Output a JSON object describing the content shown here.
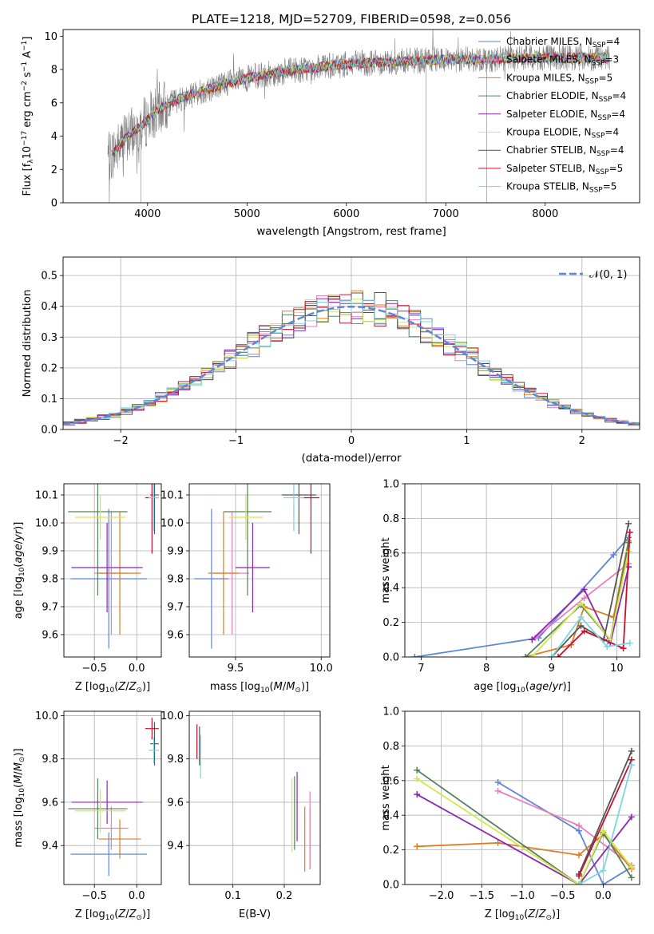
{
  "title": "PLATE=1218, MJD=52709, FIBERID=0598, z=0.056",
  "colors": {
    "Chabrier MILES": "#5f86d6",
    "Salpeter MILES": "#e87fb8",
    "Kroupa MILES": "#e07a24",
    "Chabrier ELODIE": "#55805a",
    "Salpeter ELODIE": "#8c25b2",
    "Kroupa ELODIE": "#cfe94c",
    "Chabrier STELIB": "#555555",
    "Salpeter STELIB": "#c8102e",
    "Kroupa STELIB": "#7ad7e0",
    "data": "#808080",
    "normal": "#5f86d6"
  },
  "chart_data": [
    {
      "id": "spectrum",
      "type": "line",
      "xlabel": "wavelength [Angstrom, rest frame]",
      "ylabel": "Flux [f_λ 10^-17 erg cm^-2 s^-1 A^-1]",
      "xlim": [
        3150,
        8950
      ],
      "ylim": [
        0,
        10.4
      ],
      "xticks": [
        4000,
        5000,
        6000,
        7000,
        8000
      ],
      "yticks": [
        0,
        2,
        4,
        6,
        8,
        10
      ],
      "grid": false,
      "legend_position": "right",
      "legend": [
        {
          "base": "Chabrier MILES, N",
          "sub": "SSP",
          "tail": "=4"
        },
        {
          "base": "Salpeter MILES, N",
          "sub": "SSP",
          "tail": "=3"
        },
        {
          "base": "Kroupa MILES, N",
          "sub": "SSP",
          "tail": "=5"
        },
        {
          "base": "Chabrier ELODIE, N",
          "sub": "SSP",
          "tail": "=4"
        },
        {
          "base": "Salpeter ELODIE, N",
          "sub": "SSP",
          "tail": "=4"
        },
        {
          "base": "Kroupa ELODIE, N",
          "sub": "SSP",
          "tail": "=4"
        },
        {
          "base": "Chabrier STELIB, N",
          "sub": "SSP",
          "tail": "=4"
        },
        {
          "base": "Salpeter STELIB, N",
          "sub": "SSP",
          "tail": "=5"
        },
        {
          "base": "Kroupa STELIB, N",
          "sub": "SSP",
          "tail": "=5"
        }
      ],
      "data_range": [
        3600,
        8650
      ],
      "continuum": {
        "x": [
          3600,
          3700,
          3800,
          3950,
          4100,
          4300,
          4500,
          4800,
          5100,
          5400,
          5800,
          6200,
          6600,
          7000,
          7400,
          7800,
          8200,
          8650
        ],
        "y": [
          2.6,
          3.3,
          4.0,
          4.7,
          5.6,
          6.2,
          6.6,
          7.2,
          7.6,
          7.9,
          8.2,
          8.4,
          8.5,
          8.6,
          8.6,
          8.7,
          8.7,
          8.7
        ]
      }
    },
    {
      "id": "residuals",
      "type": "step",
      "xlabel": "(data-model)/error",
      "ylabel": "Normed distribution",
      "xlim": [
        -2.5,
        2.5
      ],
      "ylim": [
        0,
        0.56
      ],
      "xticks": [
        -2,
        -1,
        0,
        1,
        2
      ],
      "yticks": [
        0.0,
        0.1,
        0.2,
        0.3,
        0.4,
        0.5
      ],
      "grid": true,
      "legend_position": "top-right",
      "legend": [
        "𝒩(0, 1)"
      ],
      "bin_width": 0.1
    },
    {
      "id": "age_vs_Z",
      "type": "errorbar",
      "xlabel": "Z [log10(Z/Z⊙)]",
      "ylabel": "age [log10(age/yr)]",
      "xlim": [
        -0.86,
        0.29
      ],
      "ylim": [
        9.52,
        10.14
      ],
      "xticks": [
        -0.5,
        0.0
      ],
      "yticks": [
        9.6,
        9.7,
        9.8,
        9.9,
        10.0,
        10.1
      ],
      "grid": true,
      "points": [
        {
          "s": "Chabrier MILES",
          "x": -0.33,
          "xe": 0.45,
          "y": 9.8,
          "ye": 0.25
        },
        {
          "s": "Salpeter MILES",
          "x": -0.3,
          "xe": 0.2,
          "y": 9.82,
          "ye": 0.22
        },
        {
          "s": "Kroupa MILES",
          "x": -0.2,
          "xe": 0.25,
          "y": 9.82,
          "ye": 0.22
        },
        {
          "s": "Chabrier ELODIE",
          "x": -0.46,
          "xe": 0.35,
          "y": 10.04,
          "ye": 0.3
        },
        {
          "s": "Salpeter ELODIE",
          "x": -0.35,
          "xe": 0.42,
          "y": 9.84,
          "ye": 0.16
        },
        {
          "s": "Kroupa ELODIE",
          "x": -0.43,
          "xe": 0.3,
          "y": 10.02,
          "ye": 0.08
        },
        {
          "s": "Chabrier STELIB",
          "x": 0.21,
          "xe": 0.05,
          "y": 10.1,
          "ye": 0.14
        },
        {
          "s": "Salpeter STELIB",
          "x": 0.18,
          "xe": 0.08,
          "y": 10.09,
          "ye": 0.2
        },
        {
          "s": "Kroupa STELIB",
          "x": 0.2,
          "xe": 0.06,
          "y": 10.09,
          "ye": 0.12
        }
      ]
    },
    {
      "id": "age_vs_mass",
      "type": "errorbar",
      "xlabel": "mass [log10(M/M⊙)]",
      "ylabel": "",
      "xlim": [
        9.23,
        10.05
      ],
      "ylim": [
        9.52,
        10.14
      ],
      "xticks": [
        9.5,
        10.0
      ],
      "yticks": [
        9.6,
        9.7,
        9.8,
        9.9,
        10.0,
        10.1
      ],
      "grid": true,
      "points": [
        {
          "s": "Chabrier MILES",
          "x": 9.36,
          "xe": 0.1,
          "y": 9.8,
          "ye": 0.25
        },
        {
          "s": "Salpeter MILES",
          "x": 9.48,
          "xe": 0.1,
          "y": 9.82,
          "ye": 0.22
        },
        {
          "s": "Kroupa MILES",
          "x": 9.43,
          "xe": 0.09,
          "y": 9.82,
          "ye": 0.22
        },
        {
          "s": "Chabrier ELODIE",
          "x": 9.57,
          "xe": 0.14,
          "y": 10.04,
          "ye": 0.3
        },
        {
          "s": "Salpeter ELODIE",
          "x": 9.6,
          "xe": 0.1,
          "y": 9.84,
          "ye": 0.16
        },
        {
          "s": "Kroupa ELODIE",
          "x": 9.56,
          "xe": 0.1,
          "y": 10.02,
          "ye": 0.08
        },
        {
          "s": "Chabrier STELIB",
          "x": 9.87,
          "xe": 0.1,
          "y": 10.1,
          "ye": 0.14
        },
        {
          "s": "Salpeter STELIB",
          "x": 9.94,
          "xe": 0.05,
          "y": 10.09,
          "ye": 0.2
        },
        {
          "s": "Kroupa STELIB",
          "x": 9.84,
          "xe": 0.06,
          "y": 10.09,
          "ye": 0.12
        }
      ]
    },
    {
      "id": "weight_vs_age",
      "type": "line",
      "xlabel": "age [log10(age/yr)]",
      "ylabel": "mass weight",
      "xlim": [
        6.75,
        10.35
      ],
      "ylim": [
        0,
        1.0
      ],
      "xticks": [
        7,
        8,
        9,
        10
      ],
      "yticks": [
        0.0,
        0.2,
        0.4,
        0.6,
        0.8,
        1.0
      ],
      "grid": true,
      "series": [
        {
          "name": "Chabrier MILES",
          "x": [
            6.9,
            8.8,
            9.95,
            10.18
          ],
          "y": [
            0.0,
            0.11,
            0.59,
            0.69
          ]
        },
        {
          "name": "Salpeter MILES",
          "x": [
            8.75,
            9.5,
            10.18
          ],
          "y": [
            0.11,
            0.34,
            0.54
          ]
        },
        {
          "name": "Kroupa MILES",
          "x": [
            8.6,
            9.3,
            9.5,
            9.95,
            10.18
          ],
          "y": [
            0.0,
            0.07,
            0.29,
            0.23,
            0.67
          ]
        },
        {
          "name": "Chabrier ELODIE",
          "x": [
            8.6,
            9.45,
            9.9,
            10.18
          ],
          "y": [
            0.0,
            0.3,
            0.1,
            0.66
          ]
        },
        {
          "name": "Salpeter ELODIE",
          "x": [
            8.7,
            9.5,
            9.9,
            10.18
          ],
          "y": [
            0.1,
            0.39,
            0.08,
            0.52
          ]
        },
        {
          "name": "Kroupa ELODIE",
          "x": [
            8.7,
            9.45,
            9.9,
            10.18
          ],
          "y": [
            0.0,
            0.31,
            0.1,
            0.61
          ]
        },
        {
          "name": "Chabrier STELIB",
          "x": [
            9.0,
            9.45,
            9.8,
            10.18
          ],
          "y": [
            0.0,
            0.18,
            0.1,
            0.77
          ]
        },
        {
          "name": "Salpeter STELIB",
          "x": [
            9.1,
            9.5,
            10.1,
            10.2
          ],
          "y": [
            0.0,
            0.15,
            0.05,
            0.72
          ]
        },
        {
          "name": "Kroupa STELIB",
          "x": [
            9.0,
            9.45,
            9.85,
            10.2
          ],
          "y": [
            0.0,
            0.23,
            0.06,
            0.08
          ]
        }
      ]
    },
    {
      "id": "mass_vs_Z",
      "type": "errorbar",
      "xlabel": "Z [log10(Z/Z⊙)]",
      "ylabel": "mass [log10(M/M⊙)]",
      "xlim": [
        -0.86,
        0.29
      ],
      "ylim": [
        9.22,
        10.02
      ],
      "xticks": [
        -0.5,
        0.0
      ],
      "yticks": [
        9.4,
        9.6,
        9.8,
        10.0
      ],
      "grid": true,
      "points": [
        {
          "s": "Chabrier MILES",
          "x": -0.33,
          "xe": 0.45,
          "y": 9.36,
          "ye": 0.1
        },
        {
          "s": "Salpeter MILES",
          "x": -0.3,
          "xe": 0.2,
          "y": 9.48,
          "ye": 0.1
        },
        {
          "s": "Kroupa MILES",
          "x": -0.2,
          "xe": 0.25,
          "y": 9.43,
          "ye": 0.09
        },
        {
          "s": "Chabrier ELODIE",
          "x": -0.46,
          "xe": 0.35,
          "y": 9.57,
          "ye": 0.14
        },
        {
          "s": "Salpeter ELODIE",
          "x": -0.35,
          "xe": 0.42,
          "y": 9.6,
          "ye": 0.1
        },
        {
          "s": "Kroupa ELODIE",
          "x": -0.43,
          "xe": 0.3,
          "y": 9.56,
          "ye": 0.1
        },
        {
          "s": "Chabrier STELIB",
          "x": 0.21,
          "xe": 0.05,
          "y": 9.87,
          "ye": 0.1
        },
        {
          "s": "Salpeter STELIB",
          "x": 0.18,
          "xe": 0.08,
          "y": 9.94,
          "ye": 0.05
        },
        {
          "s": "Kroupa STELIB",
          "x": 0.2,
          "xe": 0.06,
          "y": 9.84,
          "ye": 0.06
        }
      ]
    },
    {
      "id": "mass_vs_ebv",
      "type": "errorbar",
      "xlabel": "E(B-V)",
      "ylabel": "",
      "xlim": [
        0.015,
        0.27
      ],
      "ylim": [
        9.22,
        10.02
      ],
      "xticks": [
        0.1,
        0.2
      ],
      "yticks": [
        9.4,
        9.6,
        9.8,
        10.0
      ],
      "grid": true,
      "points": [
        {
          "s": "Chabrier MILES",
          "x": 0.25,
          "xe": 0.0,
          "y": 9.43,
          "ye": 0.14
        },
        {
          "s": "Salpeter MILES",
          "x": 0.25,
          "xe": 0.0,
          "y": 9.47,
          "ye": 0.18
        },
        {
          "s": "Kroupa MILES",
          "x": 0.24,
          "xe": 0.0,
          "y": 9.43,
          "ye": 0.15
        },
        {
          "s": "Chabrier ELODIE",
          "x": 0.22,
          "xe": 0.0,
          "y": 9.55,
          "ye": 0.17
        },
        {
          "s": "Salpeter ELODIE",
          "x": 0.225,
          "xe": 0.0,
          "y": 9.58,
          "ye": 0.16
        },
        {
          "s": "Kroupa ELODIE",
          "x": 0.215,
          "xe": 0.0,
          "y": 9.54,
          "ye": 0.17
        },
        {
          "s": "Chabrier STELIB",
          "x": 0.035,
          "xe": 0.0,
          "y": 9.86,
          "ye": 0.09
        },
        {
          "s": "Salpeter STELIB",
          "x": 0.03,
          "xe": 0.0,
          "y": 9.88,
          "ye": 0.08
        },
        {
          "s": "Kroupa STELIB",
          "x": 0.037,
          "xe": 0.0,
          "y": 9.81,
          "ye": 0.1
        }
      ]
    },
    {
      "id": "weight_vs_Z",
      "type": "line",
      "xlabel": "Z [log10(Z/Z⊙)]",
      "ylabel": "mass weight",
      "xlim": [
        -2.45,
        0.45
      ],
      "ylim": [
        0,
        1.0
      ],
      "xticks": [
        -2.0,
        -1.5,
        -1.0,
        -0.5,
        0.0
      ],
      "yticks": [
        0.0,
        0.2,
        0.4,
        0.6,
        0.8,
        1.0
      ],
      "grid": true,
      "series": [
        {
          "name": "Chabrier MILES",
          "x": [
            -1.3,
            -0.3,
            0.0,
            0.35
          ],
          "y": [
            0.59,
            0.31,
            0.0,
            0.1
          ]
        },
        {
          "name": "Salpeter MILES",
          "x": [
            -1.3,
            -0.3,
            0.35
          ],
          "y": [
            0.54,
            0.34,
            0.11
          ]
        },
        {
          "name": "Kroupa MILES",
          "x": [
            -2.3,
            -1.3,
            -0.3,
            0.0,
            0.35
          ],
          "y": [
            0.22,
            0.24,
            0.17,
            0.29,
            0.09
          ]
        },
        {
          "name": "Chabrier ELODIE",
          "x": [
            -2.3,
            -0.3,
            0.0,
            0.35
          ],
          "y": [
            0.66,
            0.0,
            0.3,
            0.04
          ]
        },
        {
          "name": "Salpeter ELODIE",
          "x": [
            -2.3,
            -0.3,
            0.35
          ],
          "y": [
            0.52,
            0.0,
            0.39
          ]
        },
        {
          "name": "Kroupa ELODIE",
          "x": [
            -2.3,
            -0.3,
            0.0,
            0.35
          ],
          "y": [
            0.61,
            0.0,
            0.31,
            0.1
          ]
        },
        {
          "name": "Chabrier STELIB",
          "x": [
            -0.3,
            0.35
          ],
          "y": [
            0.06,
            0.77
          ]
        },
        {
          "name": "Salpeter STELIB",
          "x": [
            -0.3,
            0.35
          ],
          "y": [
            0.05,
            0.72
          ]
        },
        {
          "name": "Kroupa STELIB",
          "x": [
            -0.3,
            0.0,
            0.35
          ],
          "y": [
            0.0,
            0.08,
            0.69
          ]
        }
      ]
    }
  ]
}
